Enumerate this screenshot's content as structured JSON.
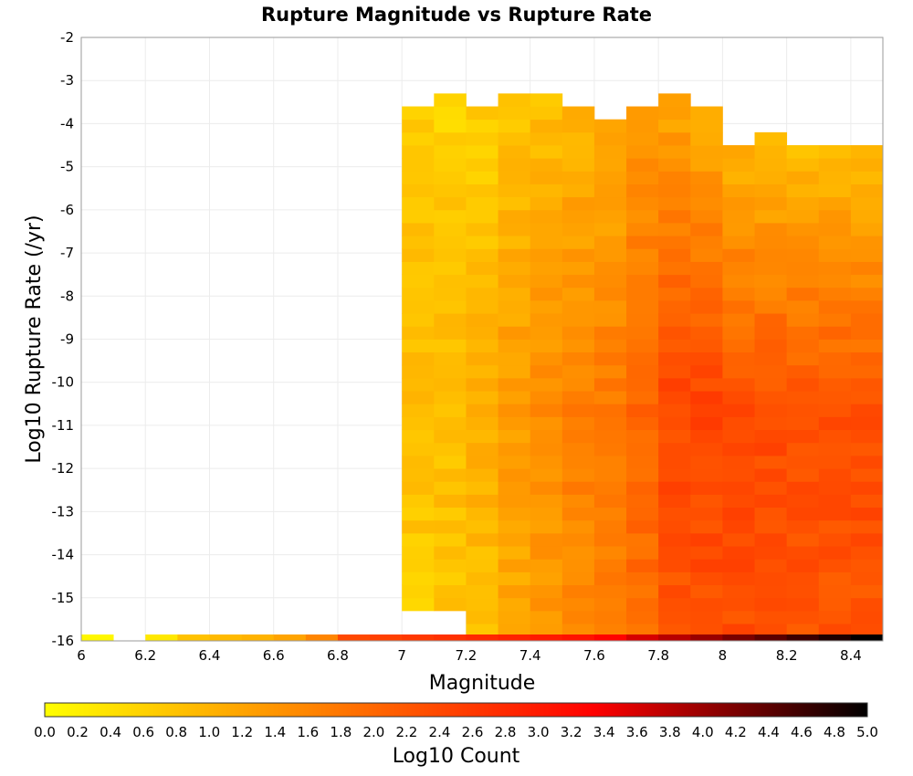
{
  "chart_data": {
    "type": "heatmap",
    "title": "Rupture Magnitude vs Rupture Rate",
    "xlabel": "Magnitude",
    "ylabel": "Log10 Rupture Rate (/yr)",
    "xlim": [
      6.0,
      8.5
    ],
    "ylim": [
      -16,
      -2
    ],
    "x_ticks": [
      "6",
      "6.2",
      "6.4",
      "6.6",
      "6.8",
      "7",
      "7.2",
      "7.4",
      "7.6",
      "7.8",
      "8",
      "8.2",
      "8.4"
    ],
    "y_ticks": [
      "-2",
      "-3",
      "-4",
      "-5",
      "-6",
      "-7",
      "-8",
      "-9",
      "-10",
      "-11",
      "-12",
      "-13",
      "-14",
      "-15",
      "-16"
    ],
    "grid": true,
    "bin_width_x": 0.1,
    "bin_height_y": 0.3,
    "colorbar": {
      "label": "Log10 Count",
      "range": [
        0.0,
        5.0
      ],
      "ticks": [
        "0.0",
        "0.2",
        "0.4",
        "0.6",
        "0.8",
        "1.0",
        "1.2",
        "1.4",
        "1.6",
        "1.8",
        "2.0",
        "2.2",
        "2.4",
        "2.6",
        "2.8",
        "3.0",
        "3.2",
        "3.4",
        "3.6",
        "3.8",
        "4.0",
        "4.2",
        "4.4",
        "4.6",
        "4.8",
        "5.0"
      ],
      "colors": [
        "#ffff00",
        "#ff8000",
        "#ff0000",
        "#000000"
      ]
    },
    "bottom_row": {
      "y": -16,
      "x": [
        6.0,
        6.2,
        6.3,
        6.4,
        6.5,
        6.6,
        6.7,
        6.8,
        6.9,
        7.0,
        7.1,
        7.2,
        7.3,
        7.4,
        7.5,
        7.6,
        7.7,
        7.8,
        7.9,
        8.0,
        8.1,
        8.2,
        8.3,
        8.4
      ],
      "values": [
        0.1,
        0.3,
        0.8,
        0.9,
        1.0,
        1.2,
        1.6,
        2.4,
        2.5,
        2.6,
        2.7,
        2.8,
        2.9,
        3.0,
        3.1,
        3.3,
        3.6,
        3.8,
        4.0,
        4.2,
        4.4,
        4.6,
        4.8,
        5.0
      ]
    },
    "columns": [
      {
        "x": 7.0,
        "top": -3.6,
        "bottom": -15.3,
        "base": 0.85,
        "slope": 0.0
      },
      {
        "x": 7.1,
        "top": -3.3,
        "bottom": -15.3,
        "base": 0.75,
        "slope": 0.02
      },
      {
        "x": 7.2,
        "top": -3.6,
        "bottom": -15.9,
        "base": 0.8,
        "slope": 0.03
      },
      {
        "x": 7.3,
        "top": -3.3,
        "bottom": -15.9,
        "base": 0.9,
        "slope": 0.05
      },
      {
        "x": 7.4,
        "top": -3.3,
        "bottom": -15.9,
        "base": 1.0,
        "slope": 0.06
      },
      {
        "x": 7.5,
        "top": -3.6,
        "bottom": -15.9,
        "base": 1.1,
        "slope": 0.07
      },
      {
        "x": 7.6,
        "top": -3.9,
        "bottom": -15.9,
        "base": 1.2,
        "slope": 0.07
      },
      {
        "x": 7.7,
        "top": -3.6,
        "bottom": -15.9,
        "base": 1.4,
        "slope": 0.08
      },
      {
        "x": 7.8,
        "top": -3.3,
        "bottom": -15.9,
        "base": 1.3,
        "slope": 0.08
      },
      {
        "x": 7.9,
        "top": -3.6,
        "bottom": -15.9,
        "base": 1.2,
        "slope": 0.09
      },
      {
        "x": 8.0,
        "top": -4.5,
        "bottom": -15.9,
        "base": 1.1,
        "slope": 0.1
      },
      {
        "x": 8.1,
        "top": -4.2,
        "bottom": -15.9,
        "base": 1.0,
        "slope": 0.1
      },
      {
        "x": 8.2,
        "top": -4.5,
        "bottom": -15.9,
        "base": 1.0,
        "slope": 0.1
      },
      {
        "x": 8.3,
        "top": -4.5,
        "bottom": -15.9,
        "base": 1.0,
        "slope": 0.1
      },
      {
        "x": 8.4,
        "top": -4.5,
        "bottom": -15.9,
        "base": 1.0,
        "slope": 0.1
      }
    ]
  }
}
